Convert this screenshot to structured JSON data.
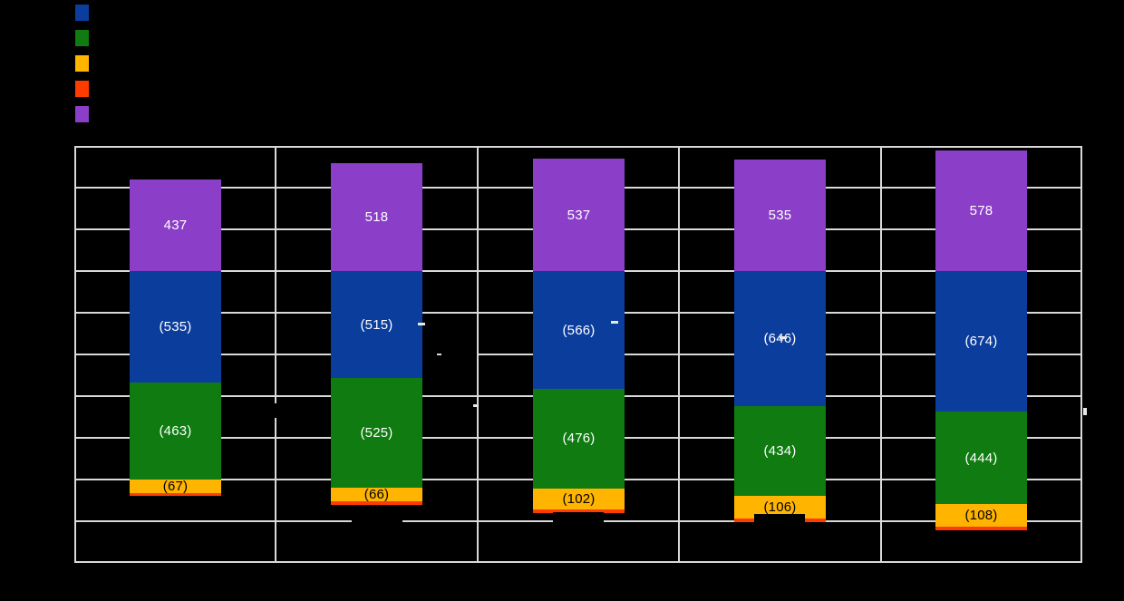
{
  "background": "#000000",
  "gridline_color": "#D9D9D9",
  "legend": {
    "position": "top-left",
    "labels_visible": false
  },
  "chart_data": {
    "type": "bar",
    "stacked": true,
    "orientation": "vertical",
    "categories": [
      "",
      "",
      "",
      "",
      ""
    ],
    "categories_visible": false,
    "axis_tick_labels_visible": false,
    "title_visible": false,
    "ylim": [
      -1400,
      600
    ],
    "gridline_step": 200,
    "grid": true,
    "zero_line_value": 0,
    "series": [
      {
        "name": "blue",
        "color": "#0B3D9D",
        "direction": "down",
        "values": [
          535,
          515,
          566,
          646,
          674
        ],
        "labels": [
          "(535)",
          "(515)",
          "(566)",
          "(646)",
          "(674)"
        ],
        "label_color": "#FFFFFF"
      },
      {
        "name": "green",
        "color": "#0F7B10",
        "direction": "down",
        "values": [
          463,
          525,
          476,
          434,
          444
        ],
        "labels": [
          "(463)",
          "(525)",
          "(476)",
          "(434)",
          "(444)"
        ],
        "label_color": "#FFFFFF"
      },
      {
        "name": "amber",
        "color": "#FFB400",
        "direction": "down",
        "values": [
          67,
          66,
          102,
          106,
          108
        ],
        "labels": [
          "(67)",
          "(66)",
          "(102)",
          "(106)",
          "(108)"
        ],
        "label_color": "#000000"
      },
      {
        "name": "red",
        "color": "#FF3C00",
        "direction": "down",
        "values": [
          13,
          17,
          17,
          17,
          17
        ],
        "labels": [
          "",
          "",
          "",
          "",
          ""
        ],
        "label_color": ""
      },
      {
        "name": "purple",
        "color": "#8B3EC8",
        "direction": "up",
        "values": [
          437,
          518,
          537,
          535,
          578
        ],
        "labels": [
          "437",
          "518",
          "537",
          "535",
          "578"
        ],
        "label_color": "#FFFFFF"
      }
    ]
  }
}
